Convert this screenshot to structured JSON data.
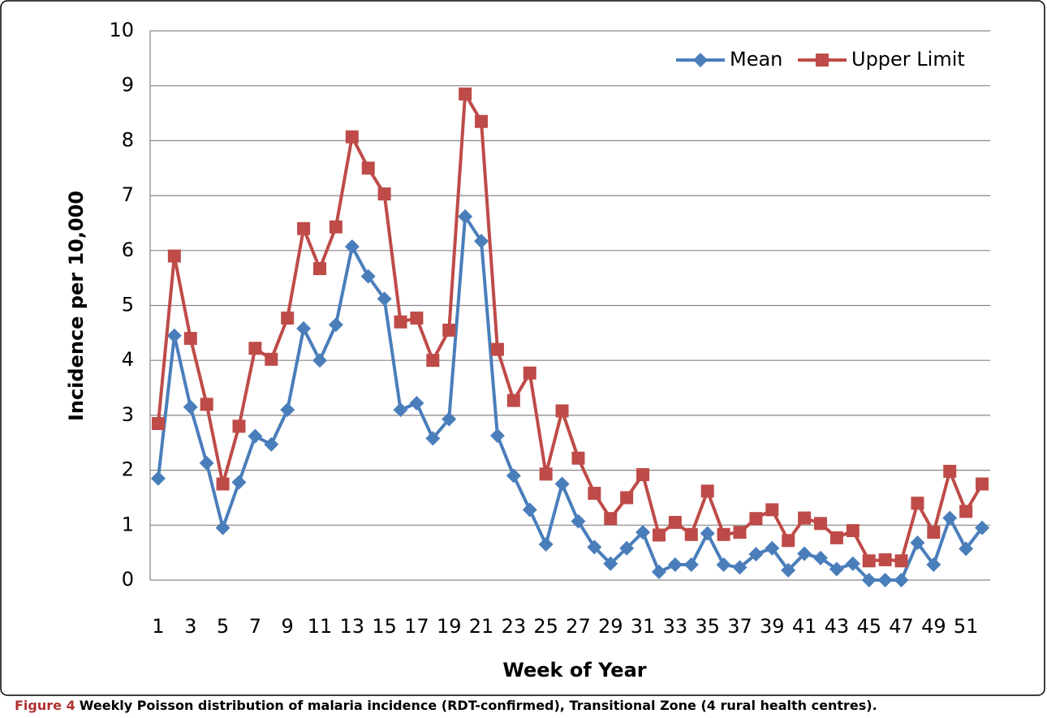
{
  "chart_data": {
    "type": "line",
    "y_label": "Incidence per 10,000",
    "x_label": "Week of Year",
    "caption_label": "Figure 4",
    "caption": "Weekly Poisson distribution of malaria incidence (RDT-confirmed), Transitional Zone (4 rural health centres).",
    "categories": [
      1,
      null,
      3,
      null,
      5,
      null,
      7,
      null,
      9,
      null,
      11,
      null,
      13,
      null,
      15,
      null,
      17,
      null,
      19,
      null,
      21,
      null,
      23,
      null,
      25,
      null,
      27,
      null,
      29,
      null,
      31,
      null,
      33,
      null,
      35,
      null,
      37,
      null,
      39,
      null,
      41,
      null,
      43,
      null,
      45,
      null,
      47,
      null,
      49,
      null,
      51,
      null
    ],
    "series": [
      {
        "name": "Mean",
        "color": "#4a7ebb",
        "marker": "diamond",
        "values": [
          1.85,
          4.45,
          3.15,
          2.13,
          0.95,
          1.78,
          2.62,
          2.47,
          3.1,
          4.58,
          4.0,
          4.65,
          6.07,
          5.53,
          5.12,
          3.1,
          3.22,
          2.58,
          2.93,
          6.62,
          6.17,
          2.63,
          1.9,
          1.28,
          0.65,
          1.75,
          1.07,
          0.6,
          0.3,
          0.58,
          0.87,
          0.15,
          0.28,
          0.28,
          0.85,
          0.28,
          0.23,
          0.47,
          0.58,
          0.18,
          0.48,
          0.4,
          0.2,
          0.3,
          0,
          0,
          0,
          0.68,
          0.28,
          1.13,
          0.57,
          0.95
        ]
      },
      {
        "name": "Upper Limit",
        "color": "#be4b48",
        "marker": "square",
        "values": [
          2.85,
          5.9,
          4.4,
          3.2,
          1.75,
          2.8,
          4.22,
          4.02,
          4.77,
          6.4,
          5.67,
          6.43,
          8.07,
          7.5,
          7.03,
          4.7,
          4.77,
          4.0,
          4.55,
          8.85,
          8.35,
          4.2,
          3.27,
          3.77,
          1.93,
          3.08,
          2.22,
          1.58,
          1.12,
          1.5,
          1.92,
          0.82,
          1.05,
          0.83,
          1.62,
          0.83,
          0.87,
          1.12,
          1.28,
          0.72,
          1.13,
          1.03,
          0.77,
          0.9,
          0.35,
          0.37,
          0.35,
          1.4,
          0.87,
          1.98,
          1.25,
          1.75
        ]
      }
    ],
    "ylim": [
      0,
      10
    ],
    "yticks": [
      0,
      1,
      2,
      3,
      4,
      5,
      6,
      7,
      8,
      9,
      10
    ],
    "grid": true,
    "legend": "top-right"
  }
}
